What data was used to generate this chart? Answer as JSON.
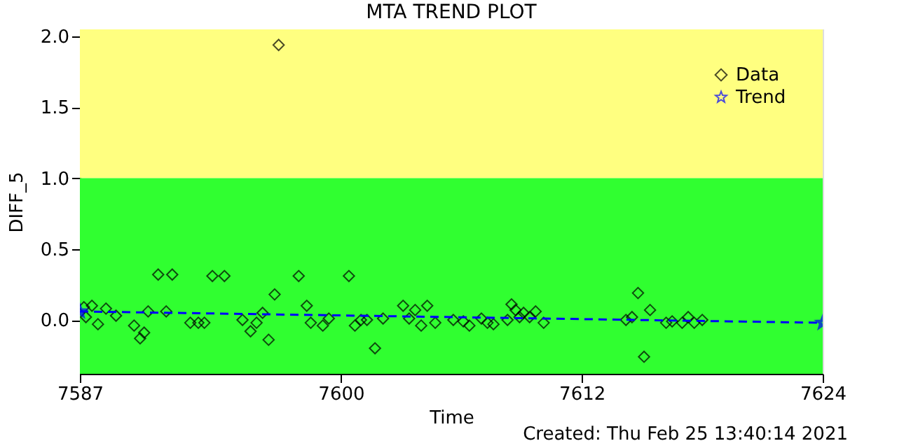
{
  "chart_data": {
    "type": "scatter",
    "title": "MTA TREND PLOT",
    "xlabel": "Time",
    "ylabel": "DIFF_5",
    "annotations": [
      "Created: Thu Feb 25 13:40:14 2021"
    ],
    "xlim": [
      7587,
      7624
    ],
    "xticks": [
      7587,
      7600,
      7612,
      7624
    ],
    "ylim": [
      -0.38,
      2.05
    ],
    "yticks": [
      {
        "value": 0,
        "label": "0.0"
      },
      {
        "value": 0.5,
        "label": "0.5"
      },
      {
        "value": 1,
        "label": "1.0"
      },
      {
        "value": 1.5,
        "label": "1.5"
      },
      {
        "value": 2,
        "label": "2.0"
      }
    ],
    "grid": false,
    "legend": "top right",
    "bands": [
      {
        "axis": "y",
        "from": 1.0,
        "to": 2.05,
        "color": "#ffff80"
      },
      {
        "axis": "y",
        "from": -0.38,
        "to": 1.0,
        "color": "#30ff30"
      }
    ],
    "series": [
      {
        "name": "Data",
        "marker": "diamond",
        "color": "#000000",
        "x": [
          7587.2,
          7587.3,
          7587.6,
          7587.9,
          7588.3,
          7588.8,
          7589.7,
          7590.0,
          7590.2,
          7590.4,
          7590.9,
          7591.3,
          7591.6,
          7592.5,
          7592.9,
          7593.2,
          7593.6,
          7594.2,
          7595.1,
          7595.5,
          7595.8,
          7596.1,
          7596.4,
          7596.7,
          7596.9,
          7597.9,
          7598.3,
          7598.5,
          7599.1,
          7599.4,
          7600.4,
          7600.7,
          7601.0,
          7601.3,
          7601.7,
          7602.1,
          7603.1,
          7603.4,
          7603.7,
          7604.0,
          7604.3,
          7604.7,
          7605.6,
          7606.1,
          7606.4,
          7607.0,
          7607.3,
          7607.6,
          7608.3,
          7608.5,
          7608.7,
          7608.9,
          7609.1,
          7609.4,
          7609.7,
          7610.1,
          7614.2,
          7614.5,
          7614.8,
          7615.1,
          7615.4,
          7616.2,
          7616.5,
          7617.0,
          7617.3,
          7617.6,
          7618.0
        ],
        "values": [
          0.09,
          0.02,
          0.1,
          -0.03,
          0.08,
          0.03,
          -0.04,
          -0.13,
          -0.09,
          0.06,
          0.32,
          0.06,
          0.32,
          -0.02,
          -0.02,
          -0.02,
          0.31,
          0.31,
          0.0,
          -0.08,
          -0.02,
          0.05,
          -0.14,
          0.18,
          1.94,
          0.31,
          0.1,
          -0.02,
          -0.04,
          0.01,
          0.31,
          -0.04,
          0.0,
          0.0,
          -0.2,
          0.01,
          0.1,
          0.01,
          0.07,
          -0.04,
          0.1,
          -0.02,
          0.0,
          -0.01,
          -0.04,
          0.01,
          -0.02,
          -0.03,
          0.0,
          0.11,
          0.07,
          0.02,
          0.05,
          0.02,
          0.06,
          -0.02,
          0.0,
          0.02,
          0.19,
          -0.26,
          0.07,
          -0.02,
          -0.01,
          -0.02,
          0.02,
          -0.02,
          0.0
        ]
      },
      {
        "name": "Trend",
        "type": "line",
        "marker": "star",
        "line_style": "dashed",
        "color": "#0000ff",
        "x": [
          7587,
          7624
        ],
        "values": [
          0.06,
          -0.02
        ]
      }
    ]
  }
}
